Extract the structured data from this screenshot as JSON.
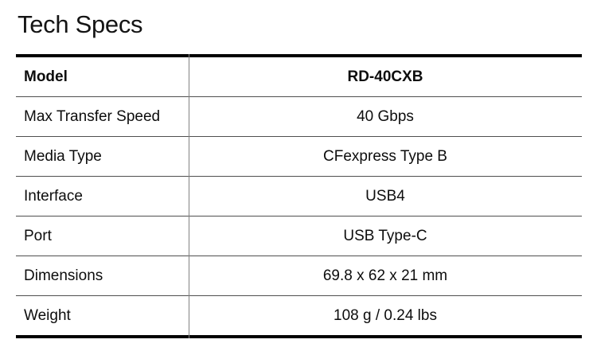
{
  "page": {
    "title": "Tech Specs"
  },
  "table": {
    "rows": [
      {
        "label": "Model",
        "value": "RD-40CXB"
      },
      {
        "label": "Max Transfer Speed",
        "value": "40 Gbps"
      },
      {
        "label": "Media Type",
        "value": "CFexpress Type B"
      },
      {
        "label": "Interface",
        "value": "USB4"
      },
      {
        "label": "Port",
        "value": "USB Type-C"
      },
      {
        "label": "Dimensions",
        "value": "69.8 x 62 x 21 mm"
      },
      {
        "label": "Weight",
        "value": "108 g / 0.24 lbs"
      }
    ]
  },
  "colors": {
    "background": "#ffffff",
    "text": "#0d0d0d",
    "thick_border": "#000000",
    "inner_rule": "#4f4f4f",
    "column_divider": "#828282"
  }
}
